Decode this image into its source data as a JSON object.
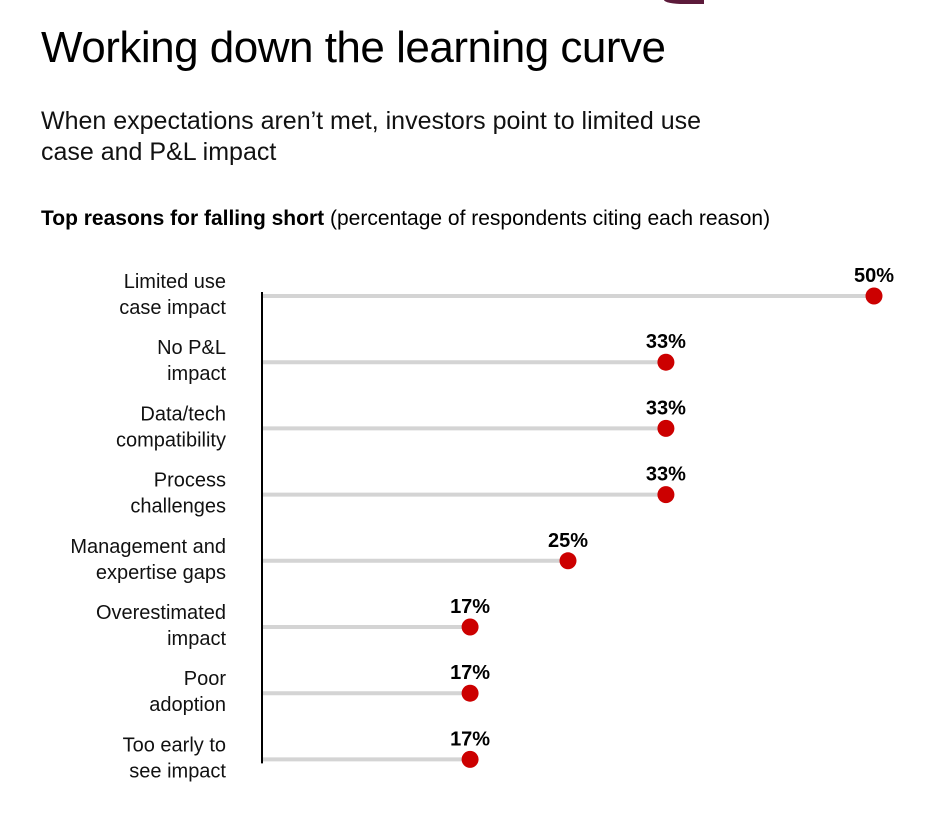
{
  "title": "Working down the learning curve",
  "subtitle": "When expectations aren’t met, investors point to limited use case and P&L impact",
  "chart_heading": {
    "bold": "Top reasons for falling short",
    "rest": " (percentage of respondents citing each reason)"
  },
  "colors": {
    "dot": "#cc0000",
    "track": "#d4d4d4",
    "axis": "#000000"
  },
  "chart_data": {
    "type": "scatter",
    "orientation": "horizontal-lollipop",
    "categories": [
      [
        "Limited use",
        "case impact"
      ],
      [
        "No P&L",
        "impact"
      ],
      [
        "Data/tech",
        "compatibility"
      ],
      [
        "Process",
        "challenges"
      ],
      [
        "Management and",
        "expertise gaps"
      ],
      [
        "Overestimated",
        "impact"
      ],
      [
        "Poor",
        "adoption"
      ],
      [
        "Too early to",
        "see impact"
      ]
    ],
    "values": [
      50,
      33,
      33,
      33,
      25,
      17,
      17,
      17
    ],
    "value_labels": [
      "50%",
      "33%",
      "33%",
      "33%",
      "25%",
      "17%",
      "17%",
      "17%"
    ],
    "xlim": [
      0,
      50
    ],
    "grid": false,
    "legend": "none"
  }
}
